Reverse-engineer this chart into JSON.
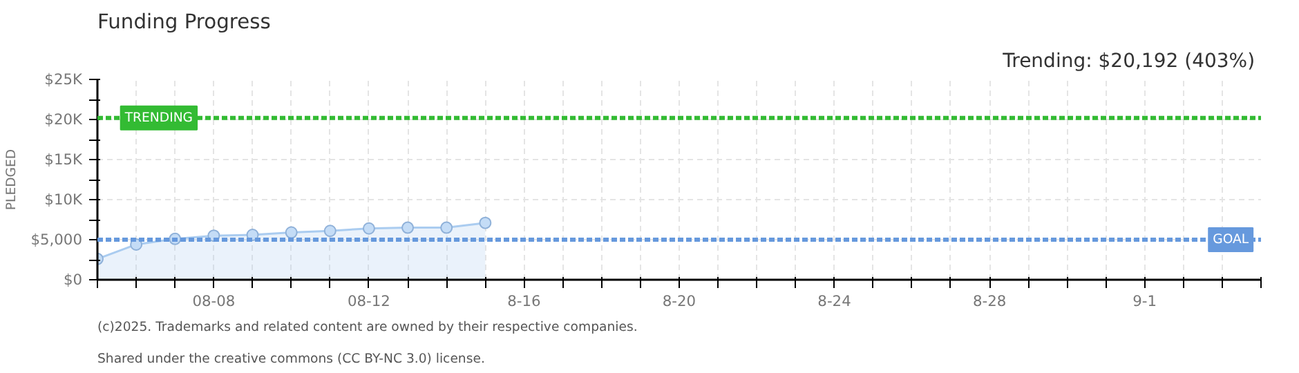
{
  "chart_data": {
    "type": "area",
    "title": "Funding Progress",
    "ylabel": "PLEDGED",
    "annotations": [
      "Trending:  $20,192 (403%)",
      "(c)2025. Trademarks and related content are owned by their respective companies.",
      "Shared under the creative commons (CC BY-NC 3.0) license."
    ],
    "x": [
      "2025-08-05",
      "2025-08-06",
      "2025-08-07",
      "2025-08-08",
      "2025-08-09",
      "2025-08-10",
      "2025-08-11",
      "2025-08-12",
      "2025-08-13",
      "2025-08-14",
      "2025-08-15"
    ],
    "series": [
      {
        "color": "#aaccf0",
        "values": [
          2600,
          4400,
          5100,
          5500,
          5600,
          5900,
          6100,
          6400,
          6500,
          6500,
          7100
        ]
      }
    ],
    "marker": "circle",
    "grid": true,
    "xlim": [
      "2025-08-05",
      "2025-09-04"
    ],
    "xticks": [
      {
        "value": "2025-08-05",
        "label": null
      },
      {
        "value": "2025-08-06",
        "label": null
      },
      {
        "value": "2025-08-07",
        "label": null
      },
      {
        "value": "2025-08-08",
        "label": "08-08"
      },
      {
        "value": "2025-08-09",
        "label": null
      },
      {
        "value": "2025-08-10",
        "label": null
      },
      {
        "value": "2025-08-11",
        "label": null
      },
      {
        "value": "2025-08-12",
        "label": "08-12"
      },
      {
        "value": "2025-08-13",
        "label": null
      },
      {
        "value": "2025-08-14",
        "label": null
      },
      {
        "value": "2025-08-15",
        "label": null
      },
      {
        "value": "2025-08-16",
        "label": "8-16"
      },
      {
        "value": "2025-08-17",
        "label": null
      },
      {
        "value": "2025-08-18",
        "label": null
      },
      {
        "value": "2025-08-19",
        "label": null
      },
      {
        "value": "2025-08-20",
        "label": "8-20"
      },
      {
        "value": "2025-08-21",
        "label": null
      },
      {
        "value": "2025-08-22",
        "label": null
      },
      {
        "value": "2025-08-23",
        "label": null
      },
      {
        "value": "2025-08-24",
        "label": "8-24"
      },
      {
        "value": "2025-08-25",
        "label": null
      },
      {
        "value": "2025-08-26",
        "label": null
      },
      {
        "value": "2025-08-27",
        "label": null
      },
      {
        "value": "2025-08-28",
        "label": "8-28"
      },
      {
        "value": "2025-08-29",
        "label": null
      },
      {
        "value": "2025-08-30",
        "label": null
      },
      {
        "value": "2025-08-31",
        "label": null
      },
      {
        "value": "2025-09-01",
        "label": "9-1"
      },
      {
        "value": "2025-09-02",
        "label": null
      },
      {
        "value": "2025-09-03",
        "label": null
      },
      {
        "value": "2025-09-04",
        "label": null
      }
    ],
    "ylim": [
      0,
      25000
    ],
    "yticks": [
      {
        "value": 0,
        "label": "$0"
      },
      {
        "value": 2500,
        "label": null
      },
      {
        "value": 5000,
        "label": "$5,000"
      },
      {
        "value": 7500,
        "label": null
      },
      {
        "value": 10000,
        "label": "$10K"
      },
      {
        "value": 12500,
        "label": null
      },
      {
        "value": 15000,
        "label": "$15K"
      },
      {
        "value": 17500,
        "label": null
      },
      {
        "value": 20000,
        "label": "$20K"
      },
      {
        "value": 22500,
        "label": null
      },
      {
        "value": 25000,
        "label": "$25K"
      }
    ],
    "ref_lines": [
      {
        "axis": "y",
        "value": 20192,
        "label": "TRENDING",
        "color": "#33bb33",
        "line_style": "dashed"
      },
      {
        "axis": "y",
        "value": 5000,
        "label": "GOAL",
        "color": "#6699dd",
        "line_style": "dashed"
      }
    ]
  }
}
